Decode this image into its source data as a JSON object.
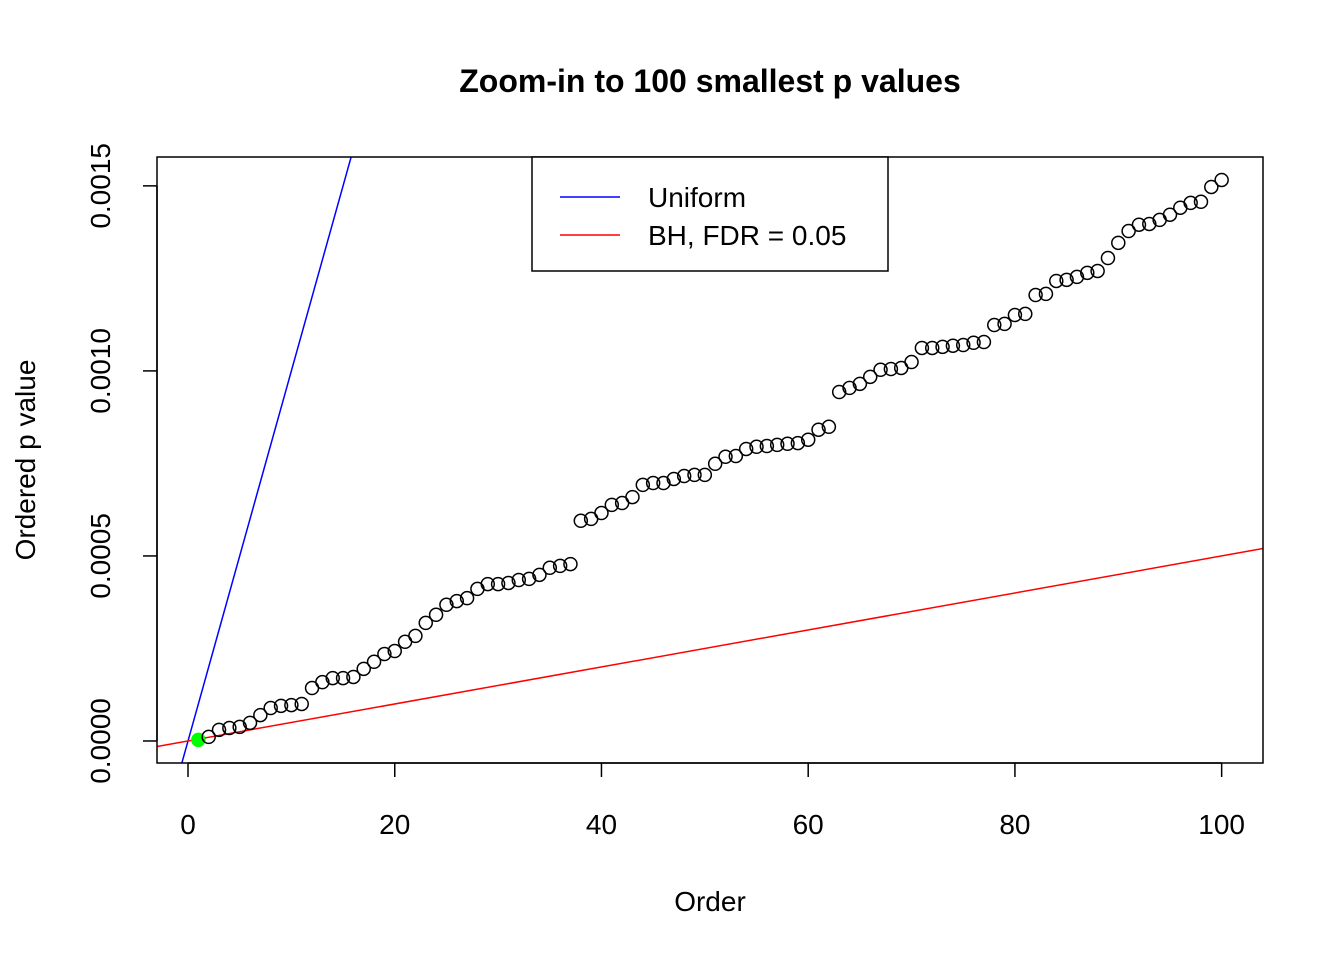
{
  "chart_data": {
    "type": "scatter",
    "title": "Zoom-in to 100 smallest p values",
    "xlabel": "Order",
    "ylabel": "Ordered p value",
    "xlim": [
      -3,
      104
    ],
    "ylim": [
      -5.95e-05,
      0.001578
    ],
    "x_ticks": [
      0,
      20,
      40,
      60,
      80,
      100
    ],
    "x_tick_labels": [
      "0",
      "20",
      "40",
      "60",
      "80",
      "100"
    ],
    "y_ticks": [
      0,
      0.0005,
      0.001,
      0.0015
    ],
    "y_tick_labels": [
      "0.0000",
      "0.0005",
      "0.0010",
      "0.0015"
    ],
    "grid": false,
    "legend": {
      "placement": "top-center",
      "entries": [
        {
          "label": "Uniform",
          "color": "#0000ff"
        },
        {
          "label": "BH, FDR = 0.05",
          "color": "#ff0000"
        }
      ]
    },
    "lines": [
      {
        "name": "Uniform",
        "intercept": 0,
        "slope": 0.0001,
        "color": "#0000ff"
      },
      {
        "name": "BH, FDR = 0.05",
        "intercept": 0,
        "slope": 5e-06,
        "color": "#ff0000"
      }
    ],
    "highlight": {
      "index": 1,
      "color": "#00ff00"
    },
    "points": [
      3e-06,
      1.1e-05,
      3e-05,
      3.5e-05,
      3.8e-05,
      4.9e-05,
      7e-05,
      8.9e-05,
      9.5e-05,
      9.7e-05,
      0.0001,
      0.000143,
      0.000159,
      0.00017,
      0.00017,
      0.000173,
      0.000195,
      0.000214,
      0.000235,
      0.000243,
      0.000268,
      0.000284,
      0.000319,
      0.000341,
      0.000368,
      0.000378,
      0.000386,
      0.000411,
      0.000424,
      0.000424,
      0.000427,
      0.000435,
      0.000438,
      0.000449,
      0.000468,
      0.000473,
      0.000478,
      0.000595,
      0.0006,
      0.000616,
      0.000638,
      0.000643,
      0.000659,
      0.000692,
      0.000697,
      0.000697,
      0.000708,
      0.000716,
      0.000719,
      0.000719,
      0.000749,
      0.000768,
      0.00077,
      0.000789,
      0.000795,
      0.000797,
      0.0008,
      0.000803,
      0.000805,
      0.000814,
      0.000841,
      0.000849,
      0.000943,
      0.000954,
      0.000965,
      0.000984,
      0.001003,
      0.001005,
      0.001008,
      0.001024,
      0.001062,
      0.001062,
      0.001065,
      0.001068,
      0.00107,
      0.001076,
      0.001078,
      0.001124,
      0.001127,
      0.001151,
      0.001154,
      0.001205,
      0.001208,
      0.001243,
      0.001246,
      0.001254,
      0.001265,
      0.00127,
      0.001305,
      0.001346,
      0.001378,
      0.001395,
      0.001397,
      0.001408,
      0.001422,
      0.001441,
      0.001454,
      0.001457,
      0.001497,
      0.001516
    ]
  }
}
